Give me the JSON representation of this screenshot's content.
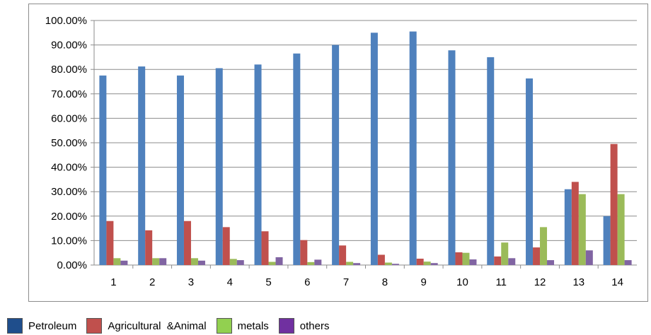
{
  "chart_data": {
    "type": "bar",
    "title": "",
    "xlabel": "",
    "ylabel": "",
    "ylim": [
      0,
      100
    ],
    "y_ticks": [
      "0.00%",
      "10.00%",
      "20.00%",
      "30.00%",
      "40.00%",
      "50.00%",
      "60.00%",
      "70.00%",
      "80.00%",
      "90.00%",
      "100.00%"
    ],
    "grid": "horizontal",
    "legend_position": "bottom-left",
    "categories": [
      "1",
      "2",
      "3",
      "4",
      "5",
      "6",
      "7",
      "8",
      "9",
      "10",
      "11",
      "12",
      "13",
      "14"
    ],
    "series": [
      {
        "name": "Petroleum",
        "color": "#4f81bd",
        "values": [
          77.5,
          81.2,
          77.5,
          80.5,
          82.0,
          86.5,
          90.0,
          95.0,
          95.5,
          87.8,
          85.0,
          76.3,
          31.0,
          20.0
        ]
      },
      {
        "name": "Agricultural  &Animal",
        "color": "#c0504d",
        "values": [
          18.0,
          14.2,
          18.0,
          15.5,
          13.8,
          10.2,
          8.0,
          4.2,
          2.6,
          5.2,
          3.5,
          7.2,
          34.0,
          49.5
        ]
      },
      {
        "name": "metals",
        "color": "#9bbb59",
        "values": [
          2.8,
          2.8,
          2.8,
          2.5,
          1.3,
          1.2,
          1.3,
          1.0,
          1.4,
          5.0,
          9.2,
          15.5,
          29.0,
          29.0
        ]
      },
      {
        "name": "others",
        "color": "#8064a2",
        "values": [
          1.8,
          2.8,
          1.8,
          2.0,
          3.2,
          2.2,
          0.8,
          0.5,
          0.8,
          2.3,
          2.8,
          2.0,
          6.0,
          2.0
        ]
      }
    ]
  },
  "legend": {
    "items": [
      {
        "label": "Petroleum",
        "color": "#1f4e8c"
      },
      {
        "label": "Agricultural  &Animal",
        "color": "#c0504d"
      },
      {
        "label": "metals",
        "color": "#92d050"
      },
      {
        "label": "others",
        "color": "#7030a0"
      }
    ]
  }
}
